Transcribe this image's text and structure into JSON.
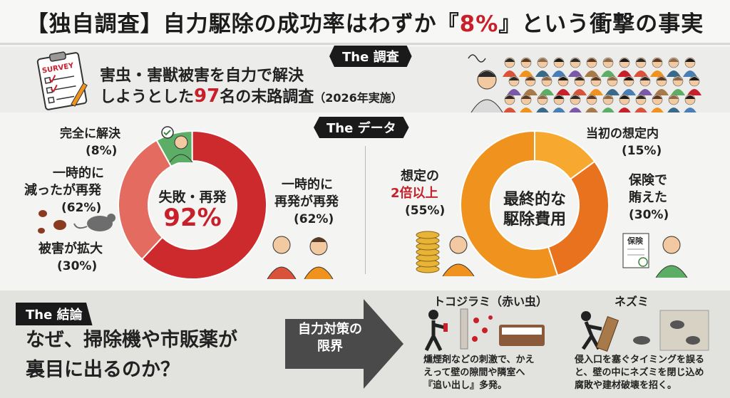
{
  "header": {
    "title_prefix": "【独自調査】自力駆除の成功率はわずか『",
    "title_highlight": "8%",
    "title_suffix": "』という衝撃の事実"
  },
  "survey": {
    "section_label": "The 調査",
    "clipboard_text": "SURVEY",
    "line1": "害虫・害獣被害を自力で解決",
    "line2_prefix": "しようとした",
    "line2_number": "97",
    "line2_suffix": "名の末路調査",
    "line2_note": "（2026年実施）"
  },
  "data_section": {
    "section_label": "The データ"
  },
  "chart_data": [
    {
      "type": "pie",
      "center_label": "失敗・再発",
      "center_value": "92%",
      "slices": [
        {
          "label": "完全に解決",
          "value": 8,
          "display": "(8%)",
          "color": "#5cae66"
        },
        {
          "label": "一時的に減ったが再発",
          "value": 62,
          "display": "(62%)",
          "color": "#cc2a2c"
        },
        {
          "label": "被害が拡大",
          "value": 30,
          "display": "(30%)",
          "color": "#e46b5f"
        }
      ],
      "labels_text": {
        "resolved": "完全に解決",
        "resolved_pct": "(8%)",
        "left_top_1": "一時的に",
        "left_top_2": "減ったが再発",
        "left_top_pct": "(62%)",
        "worse": "被害が拡大",
        "worse_pct": "(30%)",
        "right_1": "一時的に",
        "right_2": "再発が再発",
        "right_pct": "(62%)"
      }
    },
    {
      "type": "pie",
      "center_label_1": "最終的な",
      "center_label_2": "駆除費用",
      "slices": [
        {
          "label": "想定の2倍以上",
          "value": 55,
          "display": "(55%)",
          "color": "#f0921e"
        },
        {
          "label": "当初の想定内",
          "value": 15,
          "display": "(15%)",
          "color": "#f6a82f"
        },
        {
          "label": "保険で賄えた",
          "value": 30,
          "display": "(30%)",
          "color": "#e8721e"
        }
      ],
      "labels_text": {
        "double_1": "想定の",
        "double_2": "2倍以上",
        "double_pct": "(55%)",
        "expected": "当初の想定内",
        "expected_pct": "(15%)",
        "insurance_1": "保険で",
        "insurance_2": "賄えた",
        "insurance_pct": "(30%)",
        "doc_label": "保険"
      }
    }
  ],
  "conclusion": {
    "section_label": "The 結論",
    "question_line1": "なぜ、掃除機や市販薬が",
    "question_line2": "裏目に出るのか？",
    "arrow_label_1": "自力対策の",
    "arrow_label_2": "限界",
    "case1_title": "トコジラミ（赤い虫）",
    "case1_text_1": "燻煙剤などの刺激で、かえ",
    "case1_text_2": "えって壁の隙間や隣室へ",
    "case1_text_3": "『追い出し』多発。",
    "case2_title": "ネズミ",
    "case2_text_1": "侵入口を塞ぐタイミングを誤る",
    "case2_text_2": "と、壁の中にネズミを閉じ込め",
    "case2_text_3": "腐敗や建材破壊を招く。"
  },
  "colors": {
    "accent_red": "#c8202a",
    "dark": "#1a1a1a",
    "green": "#5cae66",
    "orange": "#f0921e"
  }
}
